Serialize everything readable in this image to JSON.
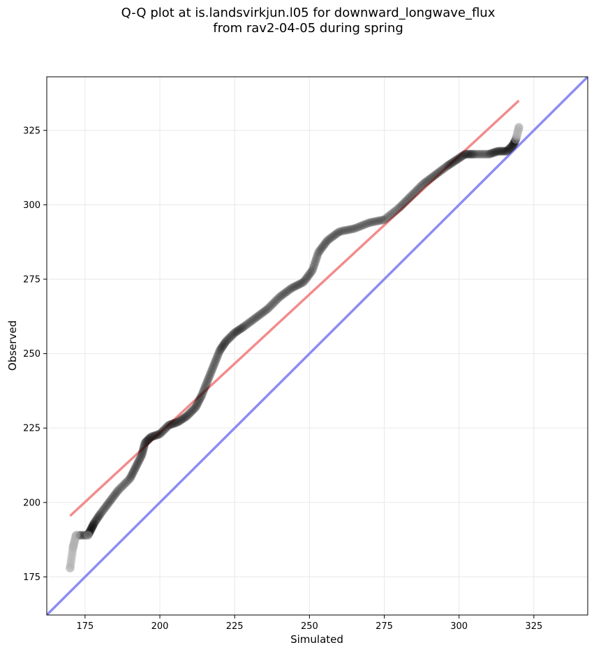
{
  "chart_data": {
    "type": "scatter",
    "title_lines": [
      "Q-Q plot at is.landsvirkjun.l05 for downward_longwave_flux",
      "from rav2-04-05 during spring"
    ],
    "xlabel": "Simulated",
    "ylabel": "Observed",
    "xlim": [
      162.2,
      343
    ],
    "ylim": [
      162.2,
      343
    ],
    "xticks": [
      175,
      200,
      225,
      250,
      275,
      300,
      325
    ],
    "yticks": [
      175,
      200,
      225,
      250,
      275,
      300,
      325
    ],
    "grid": true,
    "quantile_anchors": {
      "x": [
        170,
        171,
        172,
        176,
        177,
        178,
        180,
        183,
        186,
        190,
        192,
        194,
        195,
        197,
        200,
        203,
        206,
        209,
        212,
        214,
        216,
        218,
        220,
        222,
        225,
        228,
        232,
        236,
        240,
        244,
        248,
        251,
        253,
        256,
        260,
        265,
        270,
        275,
        280,
        284,
        288,
        292,
        296,
        299,
        302,
        305,
        310,
        313,
        316,
        318,
        319,
        320
      ],
      "y": [
        178,
        185,
        189,
        189,
        191,
        193,
        196,
        200,
        204,
        208,
        212,
        216,
        220,
        222,
        223,
        226,
        227,
        229,
        232,
        236,
        241,
        246,
        251,
        254,
        257,
        259,
        262,
        265,
        269,
        272,
        274,
        278,
        284,
        288,
        291,
        292,
        294,
        295,
        299,
        303,
        307,
        310,
        313,
        315,
        317,
        317,
        317,
        318,
        318,
        320,
        322,
        326
      ]
    },
    "point_count": 420,
    "lines": [
      {
        "role": "linear-fit",
        "color": "#f28b8b",
        "x": [
          170,
          320
        ],
        "y": [
          195.5,
          335
        ]
      },
      {
        "role": "one-to-one",
        "color": "#8c8cf2",
        "x": [
          162.2,
          343
        ],
        "y": [
          162.2,
          343
        ]
      }
    ],
    "point_color": "#000000",
    "outlier_color": "#b0b0b0"
  }
}
